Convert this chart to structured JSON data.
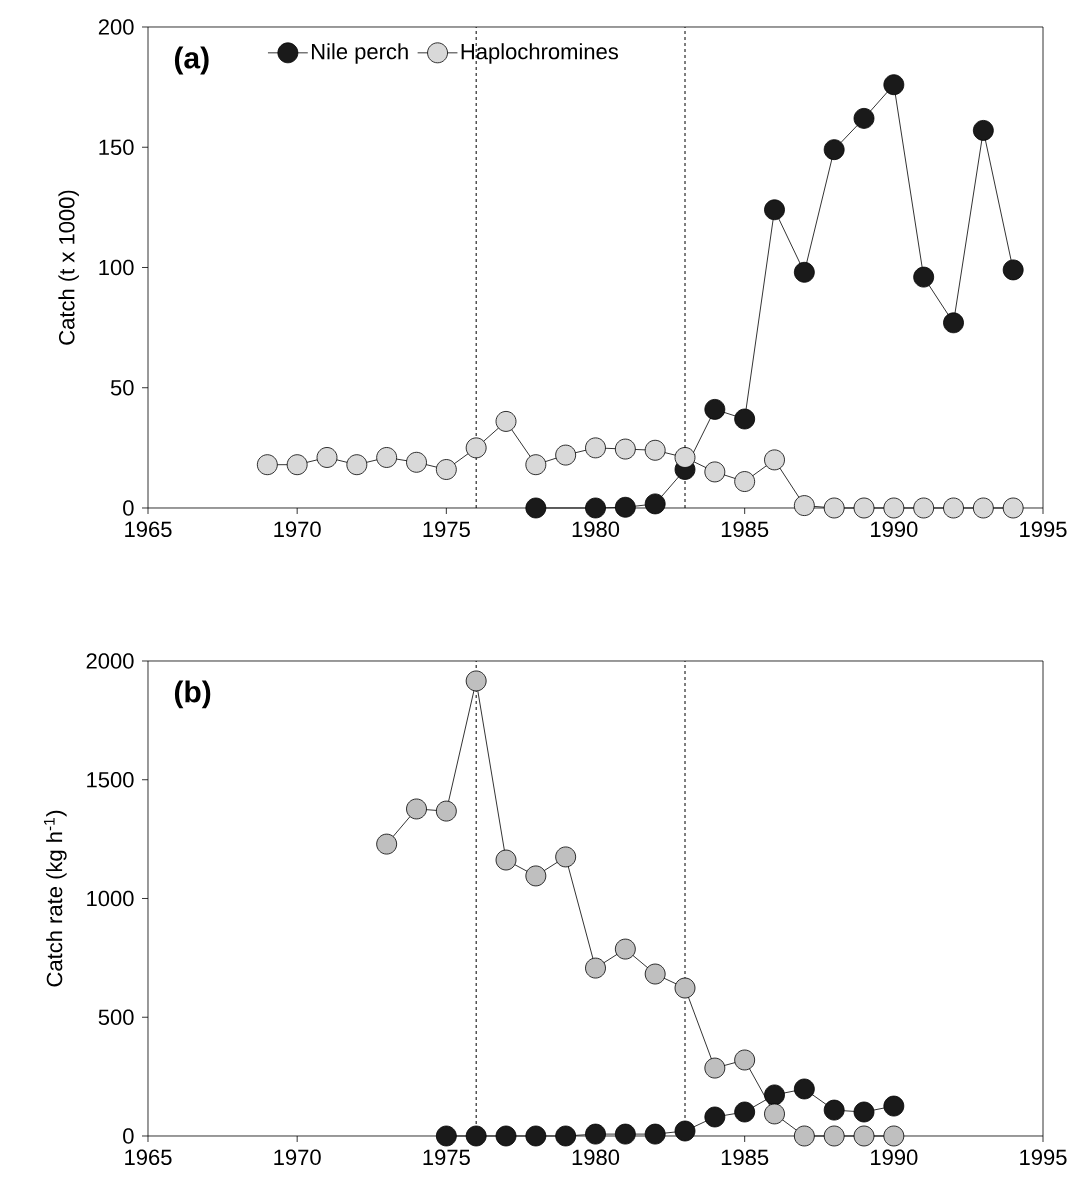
{
  "chart_data": [
    {
      "type": "line",
      "title": "(a)",
      "ylabel": "Catch  (t x 1000)",
      "xlim": [
        1965,
        1995
      ],
      "ylim": [
        0,
        200
      ],
      "xticks": [
        1965,
        1970,
        1975,
        1980,
        1985,
        1990,
        1995
      ],
      "yticks": [
        0,
        50,
        100,
        150,
        200
      ],
      "legend": "top left",
      "marker": "circle",
      "ref_lines": [
        {
          "axis": "x",
          "value": 1976,
          "line_style": "dashed"
        },
        {
          "axis": "x",
          "value": 1983,
          "line_style": "dashed"
        }
      ],
      "series": [
        {
          "name": "Nile perch",
          "color": "#1a1a1a",
          "x": [
            1978,
            1980,
            1981,
            1982,
            1983,
            1984,
            1985,
            1986,
            1987,
            1988,
            1989,
            1990,
            1991,
            1992,
            1993,
            1994
          ],
          "values": [
            0,
            0,
            0.3,
            1.7,
            16,
            41,
            37,
            124,
            98,
            149,
            162,
            176,
            96,
            77,
            157,
            99
          ]
        },
        {
          "name": "Haplochromines",
          "color": "#d9d9d9",
          "x": [
            1969,
            1970,
            1971,
            1972,
            1973,
            1974,
            1975,
            1976,
            1977,
            1978,
            1979,
            1980,
            1981,
            1982,
            1983,
            1984,
            1985,
            1986,
            1987,
            1988,
            1989,
            1990,
            1991,
            1992,
            1993,
            1994
          ],
          "values": [
            18,
            18,
            21,
            18,
            21,
            19,
            16,
            25,
            36,
            18,
            22,
            25,
            24.5,
            24,
            21,
            15,
            11,
            20,
            1,
            0,
            0,
            0,
            0,
            0,
            0,
            0
          ]
        }
      ]
    },
    {
      "type": "line",
      "title": "(b)",
      "ylabel": "Catch rate  (kg h$^{-1}$)",
      "xlim": [
        1965,
        1995
      ],
      "ylim": [
        0,
        2000
      ],
      "xticks": [
        1965,
        1970,
        1975,
        1980,
        1985,
        1990,
        1995
      ],
      "yticks": [
        0,
        500,
        1000,
        1500,
        2000
      ],
      "marker": "circle",
      "ref_lines": [
        {
          "axis": "x",
          "value": 1976,
          "line_style": "dashed"
        },
        {
          "axis": "x",
          "value": 1983,
          "line_style": "dashed"
        }
      ],
      "series": [
        {
          "color": "#1a1a1a",
          "x": [
            1975,
            1976,
            1977,
            1978,
            1979,
            1980,
            1981,
            1982,
            1983,
            1984,
            1985,
            1986,
            1987,
            1988,
            1989,
            1990
          ],
          "values": [
            0,
            0,
            0,
            0,
            0,
            8,
            8,
            8,
            21,
            80,
            101,
            173,
            198,
            109,
            101,
            126
          ]
        },
        {
          "color": "#bfbfbf",
          "x": [
            1973,
            1974,
            1975,
            1976,
            1977,
            1978,
            1979,
            1980,
            1981,
            1982,
            1983,
            1984,
            1985,
            1986,
            1987,
            1988,
            1989,
            1990
          ],
          "values": [
            1229,
            1377,
            1368,
            1916,
            1162,
            1095,
            1175,
            707,
            787,
            682,
            623,
            286,
            320,
            93,
            0,
            0,
            0,
            0
          ]
        }
      ]
    }
  ]
}
